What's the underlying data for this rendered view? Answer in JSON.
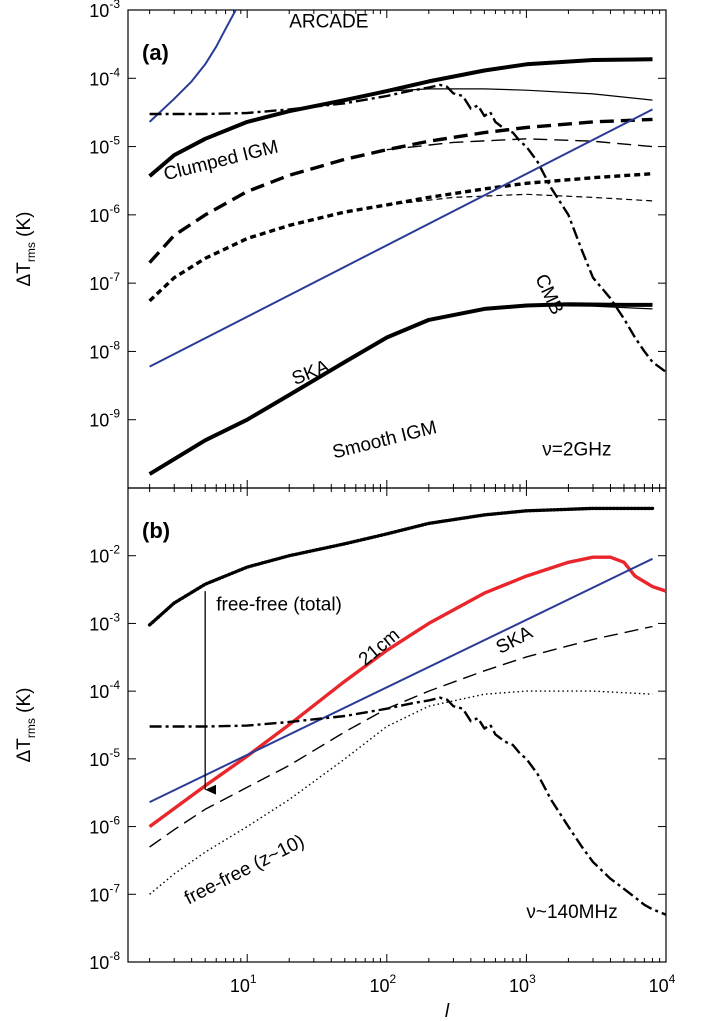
{
  "chart_data": [
    {
      "type": "line",
      "panel_label": "(a)",
      "xscale": "log",
      "yscale": "log",
      "xlim": [
        1.4,
        10000
      ],
      "ylim": [
        1e-10,
        0.001
      ],
      "xlabel": "",
      "ylabel": "ΔT_rms (K)",
      "x_tick_labels": [],
      "y_tick_labels": [
        {
          "base": "10",
          "exp": "-3",
          "value": 0.001
        },
        {
          "base": "10",
          "exp": "-4",
          "value": 0.0001
        },
        {
          "base": "10",
          "exp": "-5",
          "value": 1e-05
        },
        {
          "base": "10",
          "exp": "-6",
          "value": 1e-06
        },
        {
          "base": "10",
          "exp": "-7",
          "value": 1e-07
        },
        {
          "base": "10",
          "exp": "-8",
          "value": 1e-08
        },
        {
          "base": "10",
          "exp": "-9",
          "value": 1e-09
        }
      ],
      "annotations": [
        {
          "text": "ARCADE",
          "x": 20,
          "y": 0.00055
        },
        {
          "text": "Clumped IGM",
          "x": 2.6,
          "y": 3.2e-06,
          "rotate": -14
        },
        {
          "text": "CMB",
          "x": 1150,
          "y": 1.2e-07,
          "rotate": 65
        },
        {
          "text": "SKA",
          "x": 22,
          "y": 3.2e-09,
          "rotate": -22
        },
        {
          "text": "Smooth IGM",
          "x": 42,
          "y": 2.7e-10,
          "rotate": -14
        },
        {
          "text": "ν=2GHz",
          "x": 1300,
          "y": 3e-10
        }
      ],
      "series": [
        {
          "style": "blue",
          "color": "#2b3c97",
          "x": [
            2,
            3,
            4,
            5,
            6,
            7,
            8.5
          ],
          "y": [
            2.3e-05,
            5e-05,
            9e-05,
            0.00016,
            0.00029,
            0.00053,
            0.0011
          ]
        },
        {
          "style": "solid-thick",
          "color": "#000000",
          "x": [
            2,
            3,
            5,
            10,
            20,
            50,
            100,
            200,
            500,
            1000,
            3000,
            8000
          ],
          "y": [
            3.7e-06,
            7.5e-06,
            1.3e-05,
            2.3e-05,
            3.3e-05,
            4.8e-05,
            6.5e-05,
            9e-05,
            0.00013,
            0.00016,
            0.000185,
            0.00019
          ]
        },
        {
          "style": "solid-thin",
          "color": "#000000",
          "x": [
            100,
            200,
            500,
            1000,
            3000,
            8000
          ],
          "y": [
            6.5e-05,
            7e-05,
            7e-05,
            6.7e-05,
            5.9e-05,
            4.8e-05
          ]
        },
        {
          "style": "dashdot",
          "color": "#000000",
          "x": [
            2,
            5,
            10,
            20,
            50,
            100,
            150,
            200,
            240,
            270,
            300,
            350,
            400,
            450,
            500,
            550,
            600,
            700,
            800,
            900,
            1000,
            1200,
            1500,
            2000,
            2500,
            3000,
            4000,
            5000,
            6000,
            7000,
            8000,
            10000
          ],
          "y": [
            3e-05,
            3e-05,
            3.1e-05,
            3.5e-05,
            4.3e-05,
            5.5e-05,
            6.6e-05,
            7.3e-05,
            8e-05,
            7.5e-05,
            6e-05,
            5.5e-05,
            3.6e-05,
            4e-05,
            2.8e-05,
            3.2e-05,
            2.3e-05,
            1.8e-05,
            1.6e-05,
            1.2e-05,
            1e-05,
            6e-06,
            2.5e-06,
            1e-06,
            3e-07,
            1.2e-07,
            6e-08,
            3e-08,
            1.6e-08,
            1e-08,
            7e-09,
            5e-09
          ]
        },
        {
          "style": "dashed-thick",
          "color": "#000000",
          "x": [
            2,
            3,
            5,
            10,
            20,
            50,
            100,
            200,
            500,
            1000,
            3000,
            8000
          ],
          "y": [
            2e-07,
            5e-07,
            1e-06,
            2.2e-06,
            3.8e-06,
            6.5e-06,
            9e-06,
            1.2e-05,
            1.6e-05,
            1.9e-05,
            2.3e-05,
            2.5e-05
          ]
        },
        {
          "style": "dashed-thin",
          "color": "#000000",
          "x": [
            100,
            300,
            1000,
            3000,
            8000
          ],
          "y": [
            9e-06,
            1.15e-05,
            1.3e-05,
            1.2e-05,
            1e-05
          ]
        },
        {
          "style": "shortdash-thick",
          "color": "#000000",
          "x": [
            2,
            3,
            5,
            10,
            20,
            50,
            100,
            200,
            500,
            1000,
            3000,
            8000
          ],
          "y": [
            5.5e-08,
            1.2e-07,
            2.3e-07,
            4.5e-07,
            7e-07,
            1.1e-06,
            1.4e-06,
            1.8e-06,
            2.4e-06,
            2.9e-06,
            3.5e-06,
            4e-06
          ]
        },
        {
          "style": "shortdash-thin",
          "color": "#000000",
          "x": [
            100,
            300,
            1000,
            3000,
            8000
          ],
          "y": [
            1.4e-06,
            1.8e-06,
            2e-06,
            1.8e-06,
            1.6e-06
          ]
        },
        {
          "style": "blue",
          "color": "#2b3c97",
          "x": [
            2,
            8000
          ],
          "y": [
            6e-09,
            3.5e-05
          ]
        },
        {
          "style": "solid-thick",
          "color": "#000000",
          "x": [
            2,
            5,
            10,
            20,
            50,
            100,
            200,
            500,
            1000,
            2000,
            5000,
            8000
          ],
          "y": [
            1.6e-10,
            5e-10,
            1e-09,
            2.3e-09,
            7e-09,
            1.6e-08,
            2.9e-08,
            4.2e-08,
            4.7e-08,
            4.9e-08,
            4.8e-08,
            4.8e-08
          ]
        },
        {
          "style": "solid-thin",
          "color": "#000000",
          "x": [
            1000,
            3000,
            8000
          ],
          "y": [
            4.7e-08,
            4.6e-08,
            4.2e-08
          ]
        }
      ]
    },
    {
      "type": "line",
      "panel_label": "(b)",
      "xscale": "log",
      "yscale": "log",
      "xlim": [
        1.4,
        10000
      ],
      "ylim": [
        1e-08,
        0.1
      ],
      "xlabel": "l",
      "ylabel": "ΔT_rms (K)",
      "x_tick_labels": [
        {
          "base": "10",
          "exp": "1",
          "value": 10
        },
        {
          "base": "10",
          "exp": "2",
          "value": 100
        },
        {
          "base": "10",
          "exp": "3",
          "value": 1000
        },
        {
          "base": "10",
          "exp": "4",
          "value": 10000
        }
      ],
      "y_tick_labels": [
        {
          "base": "10",
          "exp": "-2",
          "value": 0.01
        },
        {
          "base": "10",
          "exp": "-3",
          "value": 0.001
        },
        {
          "base": "10",
          "exp": "-4",
          "value": 0.0001
        },
        {
          "base": "10",
          "exp": "-5",
          "value": 1e-05
        },
        {
          "base": "10",
          "exp": "-6",
          "value": 1e-06
        },
        {
          "base": "10",
          "exp": "-7",
          "value": 1e-07
        },
        {
          "base": "10",
          "exp": "-8",
          "value": 1e-08
        }
      ],
      "annotations": [
        {
          "text": "free-free (total)",
          "x": 6,
          "y": 0.00155
        },
        {
          "text": "SKA",
          "x": 650,
          "y": 0.00035,
          "rotate": -28
        },
        {
          "text": "21cm",
          "x": 70,
          "y": 0.00023,
          "rotate": -40
        },
        {
          "text": "free-free (z~10)",
          "x": 3.8,
          "y": 7e-08,
          "rotate": -27
        },
        {
          "text": "ν~140MHz",
          "x": 1000,
          "y": 4.5e-08
        }
      ],
      "series": [
        {
          "style": "dotted-thick",
          "color": "#000000",
          "x": [
            2,
            3,
            5,
            10,
            20,
            50,
            100,
            200,
            500,
            1000,
            3000,
            8000
          ],
          "y": [
            0.00095,
            0.002,
            0.0038,
            0.0068,
            0.01,
            0.015,
            0.021,
            0.03,
            0.04,
            0.046,
            0.05,
            0.05
          ]
        },
        {
          "style": "red",
          "color": "#e8262c",
          "x": [
            2,
            5,
            10,
            20,
            50,
            100,
            200,
            500,
            1000,
            2000,
            3000,
            4000,
            5000,
            6000,
            8000,
            10000
          ],
          "y": [
            1e-06,
            4e-06,
            1.1e-05,
            3.2e-05,
            0.00014,
            0.0004,
            0.001,
            0.0028,
            0.005,
            0.008,
            0.0095,
            0.0095,
            0.008,
            0.005,
            0.0035,
            0.003
          ]
        },
        {
          "style": "blue",
          "color": "#2b3c97",
          "x": [
            2,
            8000
          ],
          "y": [
            2.3e-06,
            0.009
          ]
        },
        {
          "style": "dashed-thin",
          "color": "#000000",
          "x": [
            2,
            3,
            5,
            10,
            20,
            50,
            100,
            200,
            500,
            1000,
            3000,
            8000
          ],
          "y": [
            5e-07,
            9e-07,
            1.8e-06,
            3.8e-06,
            8e-06,
            2.5e-05,
            5.5e-05,
            0.0001,
            0.0002,
            0.00032,
            0.00058,
            0.0009
          ]
        },
        {
          "style": "dotted-thin",
          "color": "#000000",
          "x": [
            2,
            3,
            5,
            10,
            20,
            50,
            100,
            200,
            500,
            1000,
            3000,
            8000
          ],
          "y": [
            1e-07,
            2e-07,
            4.2e-07,
            1e-06,
            2.5e-06,
            1e-05,
            3e-05,
            6e-05,
            9e-05,
            0.0001,
            0.0001,
            9e-05
          ]
        },
        {
          "style": "dashdot",
          "color": "#000000",
          "x": [
            2,
            5,
            10,
            20,
            50,
            100,
            150,
            200,
            240,
            270,
            300,
            350,
            400,
            450,
            500,
            550,
            600,
            700,
            800,
            900,
            1000,
            1200,
            1500,
            2000,
            2500,
            3000,
            4000,
            5000,
            6000,
            7000,
            8000,
            10000
          ],
          "y": [
            3e-05,
            3e-05,
            3.1e-05,
            3.5e-05,
            4.3e-05,
            5.5e-05,
            6.6e-05,
            7.3e-05,
            8e-05,
            7.5e-05,
            6e-05,
            5.5e-05,
            3.6e-05,
            4e-05,
            2.8e-05,
            3.2e-05,
            2.3e-05,
            1.8e-05,
            1.6e-05,
            1.2e-05,
            1e-05,
            6e-06,
            2.5e-06,
            1e-06,
            5e-07,
            3e-07,
            1.7e-07,
            1.2e-07,
            9e-08,
            7e-08,
            6e-08,
            5e-08
          ]
        }
      ],
      "arrow": {
        "x": 5,
        "y_start": 0.003,
        "y_end": 3.5e-06
      }
    }
  ]
}
